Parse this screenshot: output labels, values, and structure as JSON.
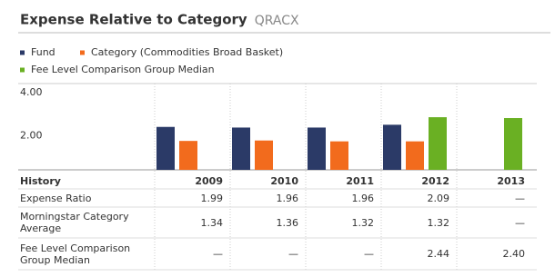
{
  "chart_data": {
    "type": "bar",
    "title": "Expense Relative to Category",
    "subtitle": "QRACX",
    "categories": [
      "2009",
      "2010",
      "2011",
      "2012",
      "2013"
    ],
    "row_header": "History",
    "series": [
      {
        "name": "Fund",
        "table_label": "Expense Ratio",
        "color": "#2b3a67",
        "values": [
          1.99,
          1.96,
          1.96,
          2.09,
          null
        ],
        "value_labels": [
          null,
          null,
          null,
          null,
          "—"
        ]
      },
      {
        "name": "Category (Commodities Broad Basket)",
        "table_label": "Morningstar Category Average",
        "color": "#f26b1d",
        "values": [
          1.34,
          1.36,
          1.32,
          1.32,
          null
        ],
        "value_labels": [
          null,
          null,
          null,
          null,
          "—"
        ]
      },
      {
        "name": "Fee Level Comparison Group Median",
        "table_label": "Fee Level Comparison Group Median",
        "color": "#6ab023",
        "values": [
          null,
          null,
          null,
          2.44,
          2.4
        ],
        "value_labels": [
          "—",
          "—",
          "—",
          null,
          "2.40"
        ]
      }
    ],
    "ylim": [
      0,
      4
    ],
    "yticks": [
      {
        "value": 2,
        "label": "2.00"
      },
      {
        "value": 4,
        "label": "4.00"
      }
    ]
  }
}
